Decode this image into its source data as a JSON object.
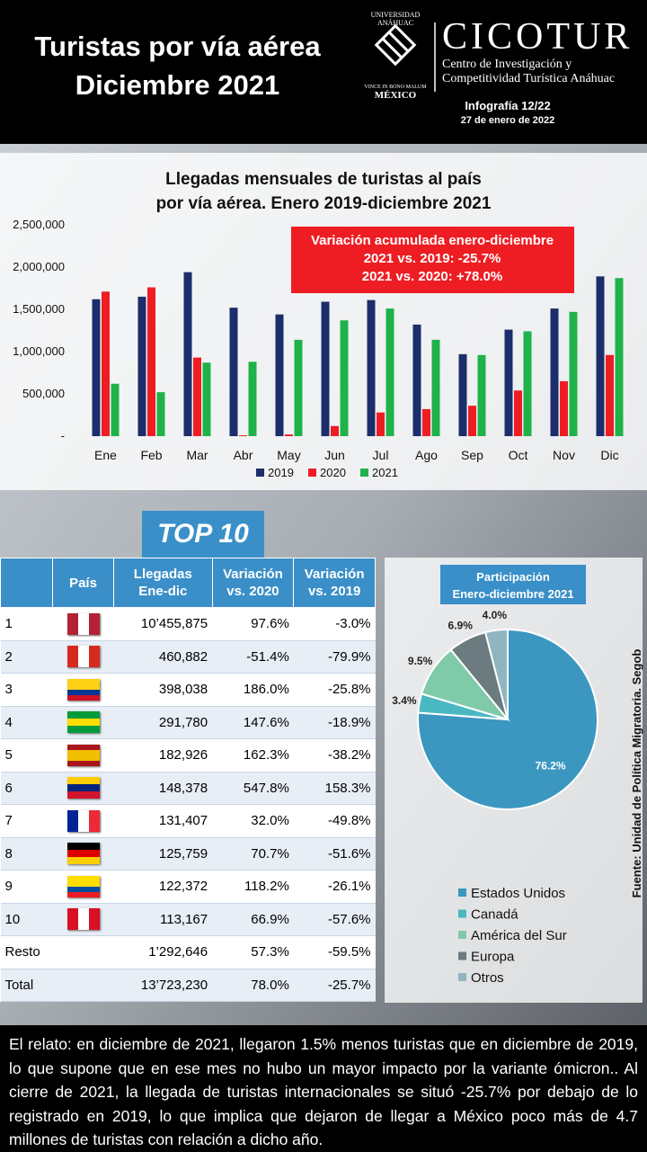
{
  "header": {
    "title": [
      "Turistas por vía aérea",
      "Diciembre 2021"
    ],
    "university": "UNIVERSIDAD ANÁHUAC",
    "motto": "VINCE IN BONO MALUM",
    "country": "MÉXICO",
    "brand": "CICOTUR",
    "brand_subtitle": [
      "Centro de Investigación y",
      "Competitividad Turística Anáhuac"
    ],
    "issue": "Infografía 12/22",
    "date": "27 de enero de 2022"
  },
  "chart_data": [
    {
      "type": "bar",
      "title": [
        "Llegadas mensuales de turistas al país",
        "por vía aérea. Enero 2019-diciembre 2021"
      ],
      "categories": [
        "Ene",
        "Feb",
        "Mar",
        "Abr",
        "May",
        "Jun",
        "Jul",
        "Ago",
        "Sep",
        "Oct",
        "Nov",
        "Dic"
      ],
      "series": [
        {
          "name": "2019",
          "color": "#1c2d6b",
          "values": [
            1620000,
            1650000,
            1940000,
            1520000,
            1440000,
            1590000,
            1610000,
            1320000,
            970000,
            1260000,
            1510000,
            1890000
          ]
        },
        {
          "name": "2020",
          "color": "#ee1d23",
          "values": [
            1710000,
            1760000,
            930000,
            10000,
            20000,
            120000,
            280000,
            320000,
            360000,
            540000,
            650000,
            960000
          ]
        },
        {
          "name": "2021",
          "color": "#1fb24a",
          "values": [
            620000,
            520000,
            870000,
            880000,
            1140000,
            1370000,
            1510000,
            1140000,
            960000,
            1240000,
            1470000,
            1870000
          ]
        }
      ],
      "ylim": [
        0,
        2500000
      ],
      "yticks": [
        {
          "value": 0,
          "label": "-"
        },
        {
          "value": 500000,
          "label": "500,000"
        },
        {
          "value": 1000000,
          "label": "1,000,000"
        },
        {
          "value": 1500000,
          "label": "1,500,000"
        },
        {
          "value": 2000000,
          "label": "2,000,000"
        },
        {
          "value": 2500000,
          "label": "2,500,000"
        }
      ],
      "annotations": [
        "Variación acumulada enero-diciembre",
        "2021 vs. 2019: -25.7%",
        "2021 vs. 2020: +78.0%"
      ]
    },
    {
      "type": "pie",
      "title": [
        "Participación",
        "Enero-diciembre 2021"
      ],
      "categories": [
        "Estados Unidos",
        "Canadá",
        "América del Sur",
        "Europa",
        "Otros"
      ],
      "values": [
        76.2,
        3.4,
        9.5,
        6.9,
        4.0
      ],
      "value_labels": [
        "76.2%",
        "3.4%",
        "9.5%",
        "6.9%",
        "4.0%"
      ],
      "colors": [
        "#3b97c0",
        "#4ab8c1",
        "#7fcaa9",
        "#6b7b80",
        "#8fb6c0"
      ]
    }
  ],
  "table": {
    "label": "TOP 10",
    "columns": [
      [
        "País"
      ],
      [
        "Llegadas",
        "Ene-dic"
      ],
      [
        "Variación",
        "vs. 2020"
      ],
      [
        "Variación",
        "vs. 2019"
      ]
    ],
    "rows": [
      [
        "1",
        "10’455,875",
        "97.6%",
        "-3.0%"
      ],
      [
        "2",
        "460,882",
        "-51.4%",
        "-79.9%"
      ],
      [
        "3",
        "398,038",
        "186.0%",
        "-25.8%"
      ],
      [
        "4",
        "291,780",
        "147.6%",
        "-18.9%"
      ],
      [
        "5",
        "182,926",
        "162.3%",
        "-38.2%"
      ],
      [
        "6",
        "148,378",
        "547.8%",
        "158.3%"
      ],
      [
        "7",
        "131,407",
        "32.0%",
        "-49.8%"
      ],
      [
        "8",
        "125,759",
        "70.7%",
        "-51.6%"
      ],
      [
        "9",
        "122,372",
        "118.2%",
        "-26.1%"
      ],
      [
        "10",
        "113,167",
        "66.9%",
        "-57.6%"
      ],
      [
        "Resto",
        "1’292,646",
        "57.3%",
        "-59.5%"
      ],
      [
        "Total",
        "13’723,230",
        "78.0%",
        "-25.7%"
      ]
    ]
  },
  "source": "Fuente: Unidad de Política Migratoria. Segob",
  "narrative": "El relato: en diciembre de 2021, llegaron 1.5% menos turistas que en diciembre de 2019, lo que supone que en ese mes no hubo un mayor impacto por la variante ómicron.. Al cierre de 2021, la llegada de turistas internacionales se situó -25.7% por debajo de lo registrado en 2019, lo que implica que dejaron de llegar a México poco más de 4.7 millones de turistas con relación a dicho año."
}
